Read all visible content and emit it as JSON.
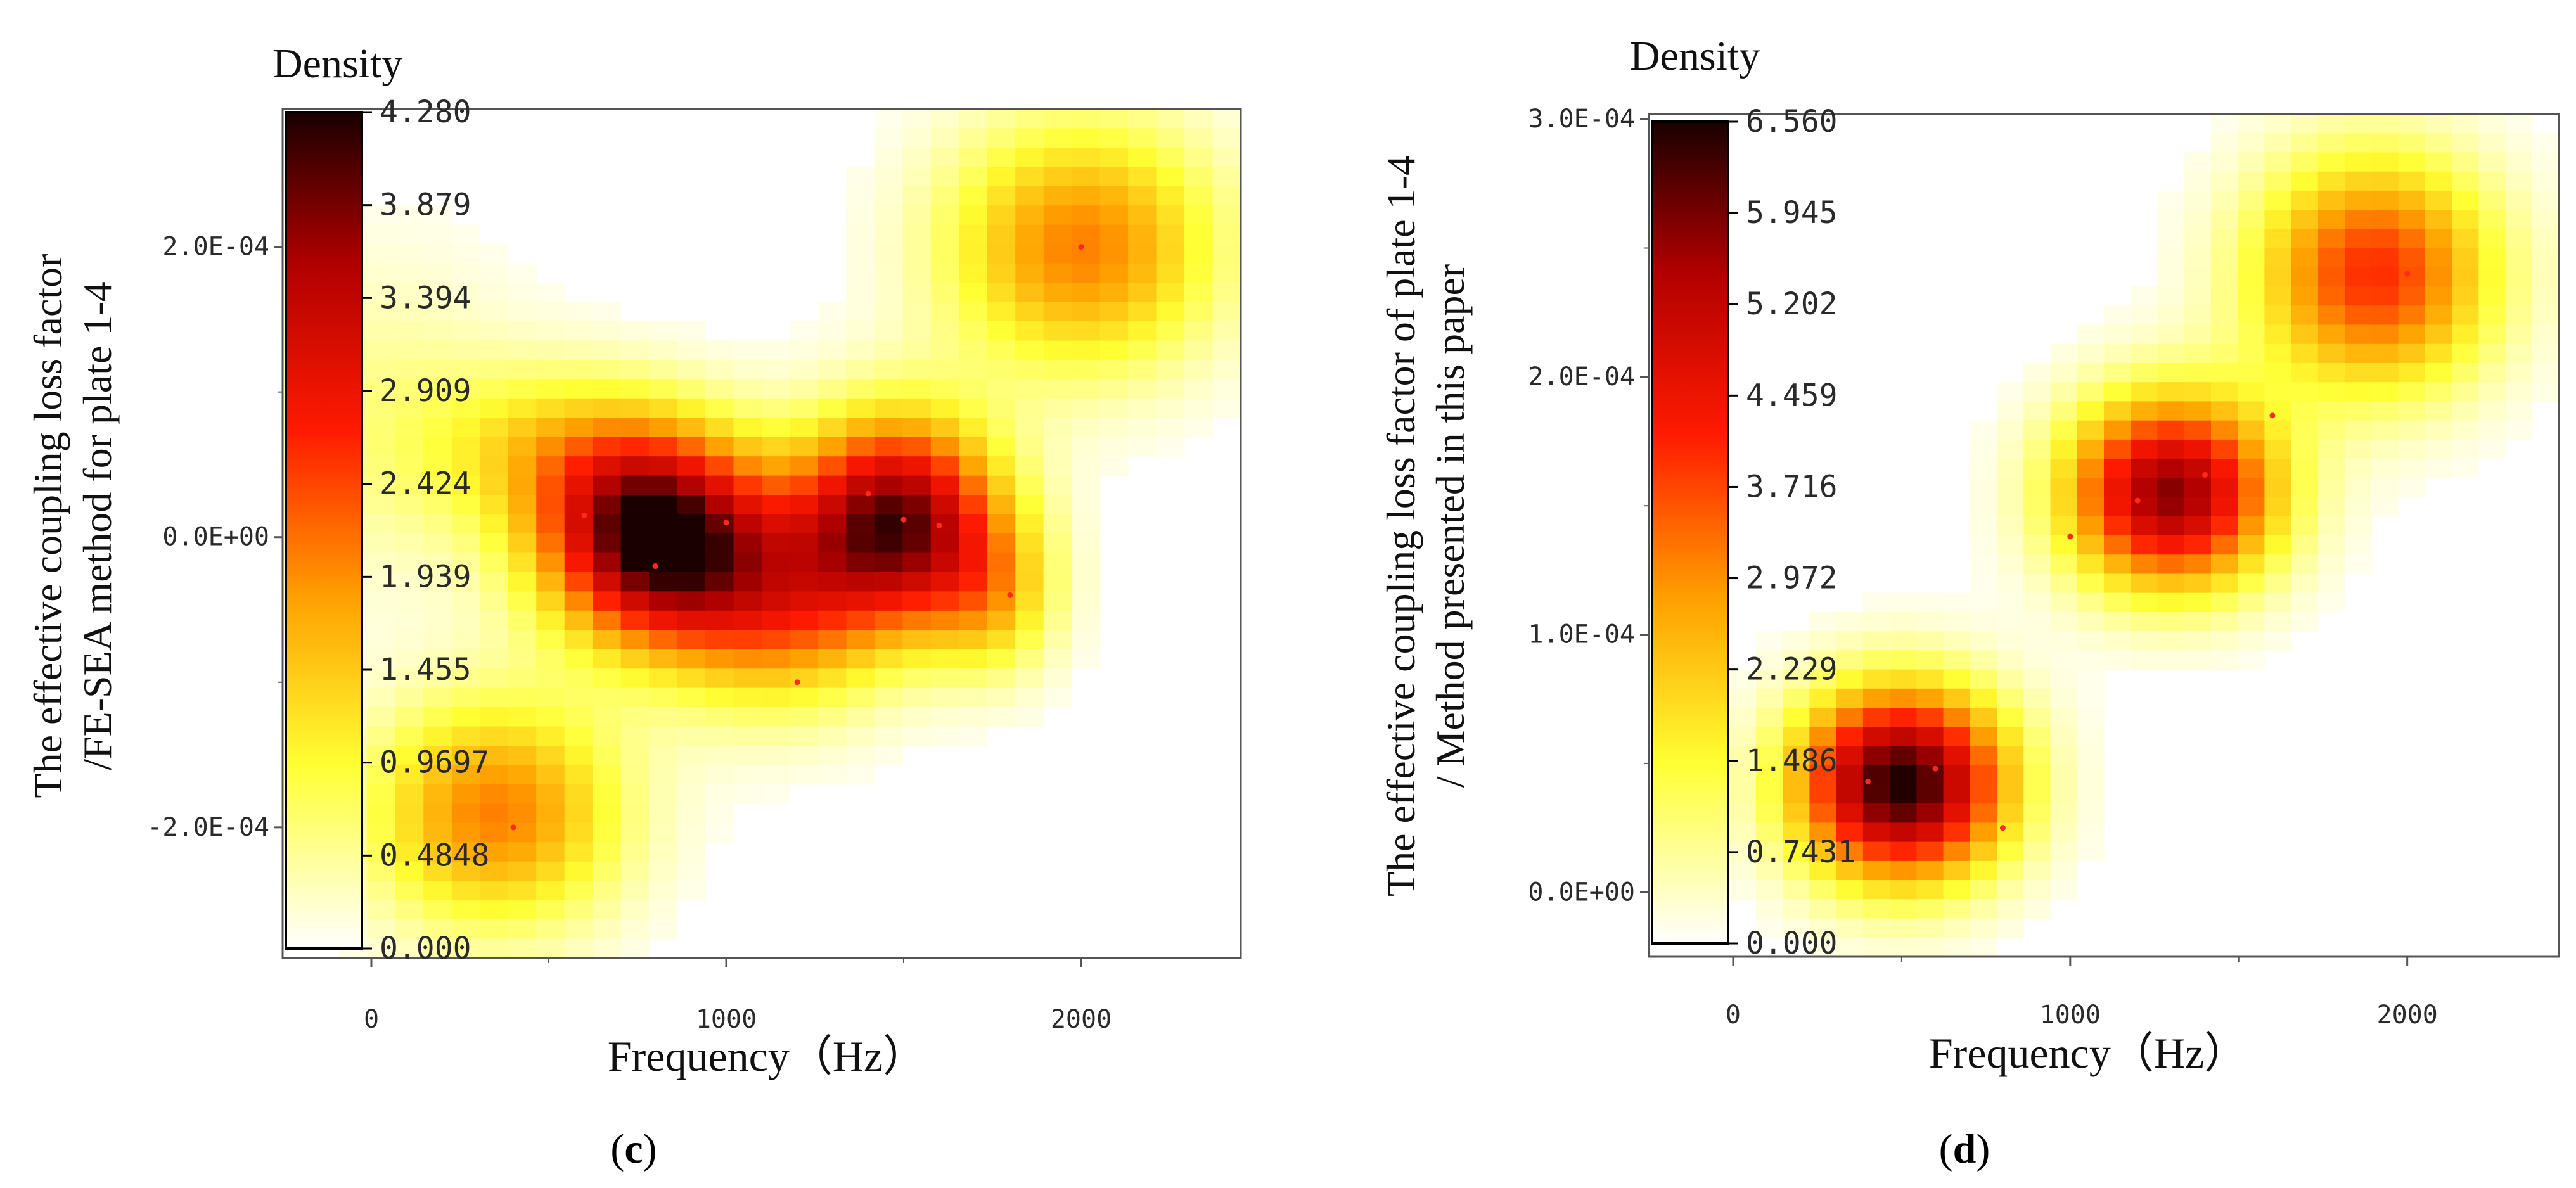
{
  "figure": {
    "panels": [
      "(c)",
      "(d)"
    ]
  },
  "chart_data": [
    {
      "type": "heatmap",
      "panel_label_parts": [
        "(",
        "c",
        ")"
      ],
      "colorbar_title": "Density",
      "xlabel": "Frequency（Hz）",
      "ylabel_lines": [
        "The effective coupling loss factor",
        "/FE-SEA method for plate 1-4"
      ],
      "xlim": [
        -250,
        2450
      ],
      "ylim": [
        -0.00029,
        0.000295
      ],
      "x_ticks": [
        0,
        1000,
        2000
      ],
      "x_tick_labels": [
        "0",
        "1000",
        "2000"
      ],
      "y_ticks": [
        -0.0002,
        0.0,
        0.0002
      ],
      "y_tick_labels": [
        "-2.0E-04",
        "0.0E+00",
        "2.0E-04"
      ],
      "colorbar_range": [
        0.0,
        4.28
      ],
      "colorbar_tick_labels": [
        "4.280",
        "3.879",
        "3.394",
        "2.909",
        "2.424",
        "1.939",
        "1.455",
        "0.9697",
        "0.4848",
        "0.000"
      ],
      "data_points": [
        {
          "x": 600,
          "y": 1.5e-05
        },
        {
          "x": 800,
          "y": -2e-05
        },
        {
          "x": 1000,
          "y": 1e-05
        },
        {
          "x": 1400,
          "y": 3e-05
        },
        {
          "x": 1500,
          "y": 1.2e-05
        },
        {
          "x": 1600,
          "y": 8e-06
        },
        {
          "x": 1800,
          "y": -4e-05
        },
        {
          "x": 1200,
          "y": -0.0001
        },
        {
          "x": 2000,
          "y": 0.0002
        },
        {
          "x": 400,
          "y": -0.0002
        }
      ],
      "density_peaks": [
        {
          "x": 800,
          "y": 0.0,
          "sx": 220,
          "sy": 5e-05,
          "v": 4.28
        },
        {
          "x": 1480,
          "y": 1.2e-05,
          "sx": 200,
          "sy": 5e-05,
          "v": 3.75
        },
        {
          "x": 1150,
          "y": -5e-05,
          "sx": 220,
          "sy": 5e-05,
          "v": 1.8
        },
        {
          "x": 1750,
          "y": -4e-05,
          "sx": 130,
          "sy": 4e-05,
          "v": 1.2
        },
        {
          "x": 500,
          "y": 6e-05,
          "sx": 250,
          "sy": 4e-05,
          "v": 1.0
        },
        {
          "x": 350,
          "y": -0.00019,
          "sx": 250,
          "sy": 5.5e-05,
          "v": 2.0
        },
        {
          "x": 2000,
          "y": 0.0002,
          "sx": 270,
          "sy": 6e-05,
          "v": 2.0
        },
        {
          "x": 0,
          "y": 8e-05,
          "sx": 300,
          "sy": 8e-05,
          "v": 0.5
        }
      ]
    },
    {
      "type": "heatmap",
      "panel_label_parts": [
        "(",
        "d",
        ")"
      ],
      "colorbar_title": "Density",
      "xlabel": "Frequency（Hz）",
      "ylabel_lines": [
        "The effective coupling loss factor of plate 1-4",
        "/ Method presented in this paper"
      ],
      "xlim": [
        -250,
        2450
      ],
      "ylim": [
        -2.5e-05,
        0.000302
      ],
      "x_ticks": [
        0,
        1000,
        2000
      ],
      "x_tick_labels": [
        "0",
        "1000",
        "2000"
      ],
      "y_ticks": [
        0.0,
        0.0001,
        0.0002,
        0.0003
      ],
      "y_tick_labels": [
        "0.0E+00",
        "1.0E-04",
        "2.0E-04",
        "3.0E-04"
      ],
      "colorbar_range": [
        0.0,
        6.56
      ],
      "colorbar_tick_labels": [
        "6.560",
        "5.945",
        "5.202",
        "4.459",
        "3.716",
        "2.972",
        "2.229",
        "1.486",
        "0.7431",
        "0.000"
      ],
      "data_points": [
        {
          "x": 400,
          "y": 4.3e-05
        },
        {
          "x": 600,
          "y": 4.8e-05
        },
        {
          "x": 800,
          "y": 2.5e-05
        },
        {
          "x": 1000,
          "y": 0.000138
        },
        {
          "x": 1200,
          "y": 0.000152
        },
        {
          "x": 1400,
          "y": 0.000162
        },
        {
          "x": 1600,
          "y": 0.000185
        },
        {
          "x": 2000,
          "y": 0.00024
        }
      ],
      "density_peaks": [
        {
          "x": 500,
          "y": 4.2e-05,
          "sx": 220,
          "sy": 2.6e-05,
          "v": 6.56
        },
        {
          "x": 1300,
          "y": 0.000155,
          "sx": 220,
          "sy": 2.6e-05,
          "v": 5.7
        },
        {
          "x": 1900,
          "y": 0.00024,
          "sx": 250,
          "sy": 3.2e-05,
          "v": 3.9
        }
      ]
    }
  ]
}
